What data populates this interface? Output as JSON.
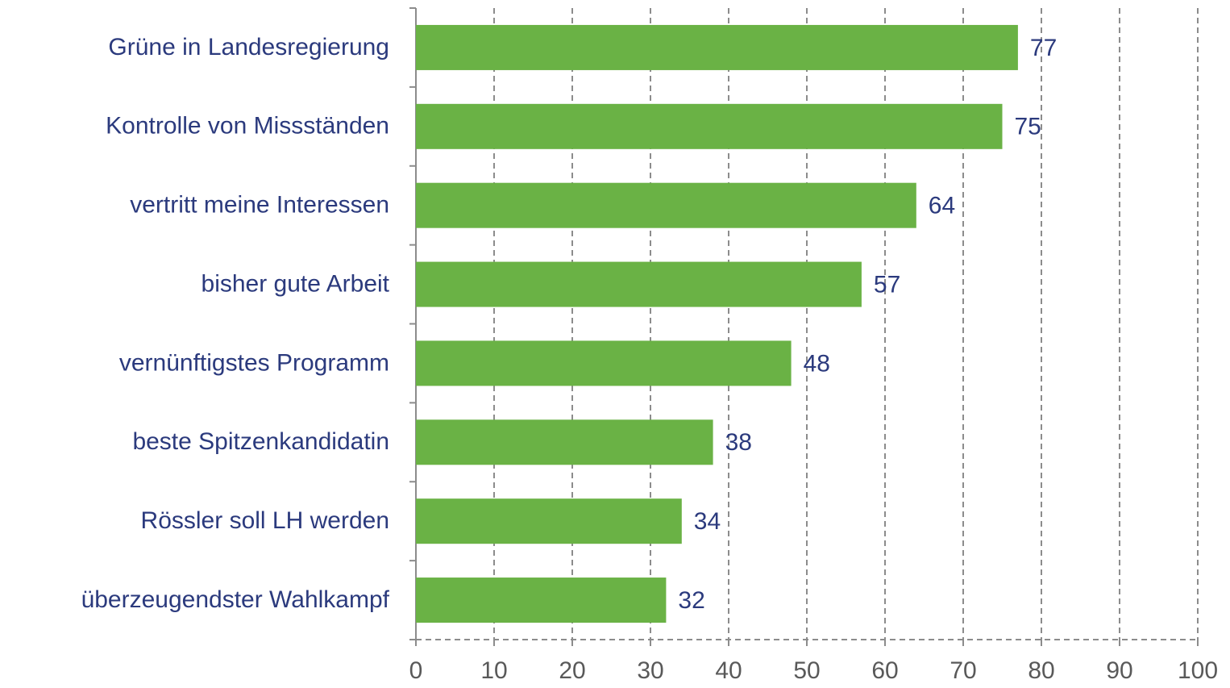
{
  "chart_data": {
    "type": "bar",
    "orientation": "horizontal",
    "categories": [
      "Grüne in Landesregierung",
      "Kontrolle von Missständen",
      "vertritt meine Interessen",
      "bisher gute Arbeit",
      "vernünftigstes Programm",
      "beste Spitzenkandidatin",
      "Rössler soll LH werden",
      "überzeugendster Wahlkampf"
    ],
    "values": [
      77,
      75,
      64,
      57,
      48,
      38,
      34,
      32
    ],
    "color": "#6ab245",
    "xlim": [
      0,
      100
    ],
    "xticks": [
      0,
      10,
      20,
      30,
      40,
      50,
      60,
      70,
      80,
      90,
      100
    ],
    "grid": true
  }
}
